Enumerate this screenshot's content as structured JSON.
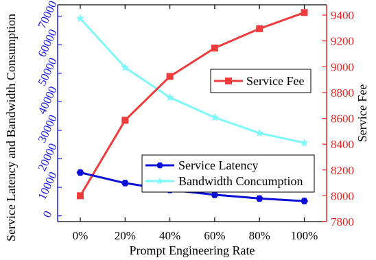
{
  "chart_data": {
    "type": "line",
    "xlabel": "Prompt Engineering Rate",
    "ylabel_left": "Service Latency and Bandwidth Consumption",
    "ylabel_right": "Service Fee",
    "categories": [
      "0%",
      "20%",
      "40%",
      "60%",
      "80%",
      "100%"
    ],
    "ylim_left": [
      -2000,
      74000
    ],
    "yticks_left": [
      "0",
      "10000",
      "20000",
      "30000",
      "40000",
      "50000",
      "60000",
      "70000"
    ],
    "ylim_right": [
      7800,
      9480
    ],
    "yticks_right": [
      "7800",
      "8000",
      "8200",
      "8400",
      "8600",
      "8800",
      "9000",
      "9200",
      "9400"
    ],
    "series": [
      {
        "name": "Service Latency",
        "axis": "left",
        "color": "#0a10d8",
        "marker": "hexagon",
        "values": [
          15200,
          11500,
          9100,
          7400,
          6100,
          5200
        ]
      },
      {
        "name": "Bandwidth Concumption",
        "axis": "left",
        "color": "#7ef8f8",
        "marker": "star",
        "values": [
          69200,
          52000,
          41500,
          34500,
          29000,
          25600
        ]
      },
      {
        "name": "Service Fee",
        "axis": "right",
        "color": "#ee3b3b",
        "marker": "square",
        "values": [
          8000,
          8585,
          8925,
          9145,
          9295,
          9420
        ]
      }
    ],
    "axis_colors": {
      "left": "#1a1ae6",
      "right": "#e52222",
      "bottom": "#000000"
    },
    "grid": false,
    "legends": [
      "center-right",
      "bottom-right"
    ]
  }
}
